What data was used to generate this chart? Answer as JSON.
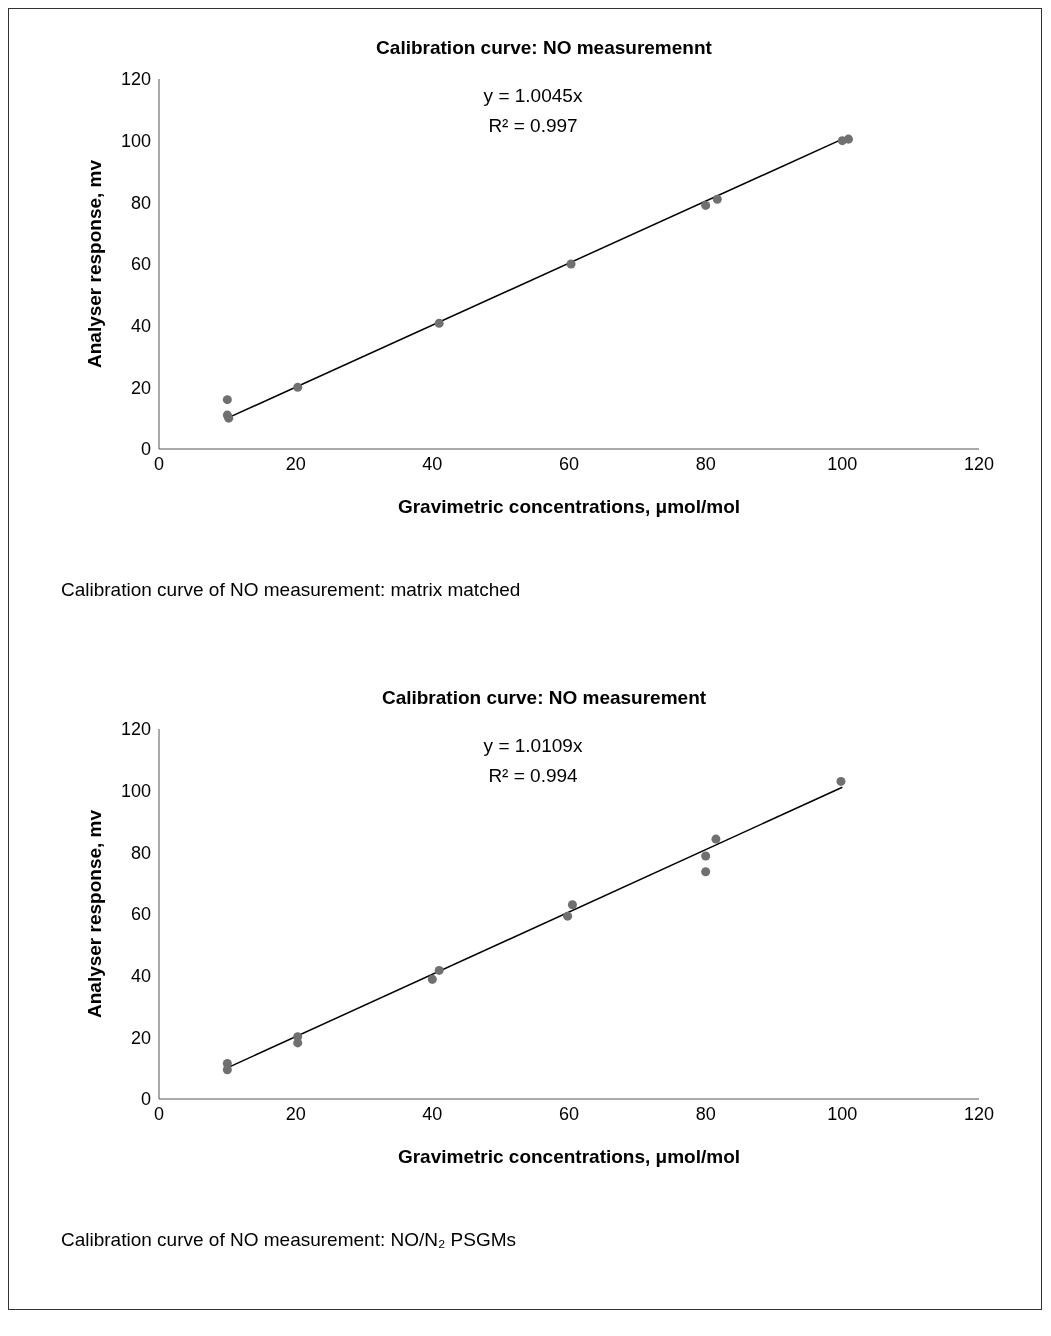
{
  "chart_data": [
    {
      "type": "scatter",
      "title": "Calibration curve: NO measuremennt",
      "xlabel": "Gravimetric concentrations, μmol/mol",
      "ylabel": "Analyser response, mv",
      "xlim": [
        0,
        120
      ],
      "xticks": [
        0,
        20,
        40,
        60,
        80,
        100,
        120
      ],
      "ylim": [
        0,
        120
      ],
      "yticks": [
        0,
        20,
        40,
        60,
        80,
        100,
        120
      ],
      "annotations": [
        "y = 1.0045x",
        "R² = 0.997",
        "Calibration curve of NO measurement: matrix matched"
      ],
      "series": [
        {
          "type": "scatter",
          "marker": "circle",
          "color": "#707070",
          "x": [
            10,
            10,
            10.2,
            20.3,
            41,
            60.3,
            80,
            81.7,
            100,
            100.9
          ],
          "values": [
            16,
            11,
            10,
            20,
            40.8,
            60,
            79,
            81,
            100,
            100.5
          ]
        },
        {
          "type": "line",
          "marker": "none",
          "color": "#000000",
          "x": [
            10,
            100
          ],
          "values": [
            10,
            100.5
          ]
        }
      ]
    },
    {
      "type": "scatter",
      "title": "Calibration curve: NO measurement",
      "xlabel": "Gravimetric concentrations, μmol/mol",
      "ylabel": "Analyser response, mv",
      "xlim": [
        0,
        120
      ],
      "xticks": [
        0,
        20,
        40,
        60,
        80,
        100,
        120
      ],
      "ylim": [
        0,
        120
      ],
      "yticks": [
        0,
        20,
        40,
        60,
        80,
        100,
        120
      ],
      "annotations": [
        "y = 1.0109x",
        "R² = 0.994",
        "Calibration curve of NO measurement: NO/N₂ PSGMs"
      ],
      "series": [
        {
          "type": "scatter",
          "marker": "circle",
          "color": "#707070",
          "x": [
            10,
            10,
            20.3,
            20.3,
            40,
            41,
            59.8,
            60.5,
            80,
            80,
            81.5,
            99.8
          ],
          "values": [
            11.5,
            9.5,
            20.2,
            18.2,
            38.8,
            41.7,
            59.3,
            63,
            78.8,
            73.7,
            84.3,
            103
          ]
        },
        {
          "type": "line",
          "marker": "none",
          "color": "#000000",
          "x": [
            10,
            100
          ],
          "values": [
            10.1,
            101.1
          ]
        }
      ]
    }
  ]
}
